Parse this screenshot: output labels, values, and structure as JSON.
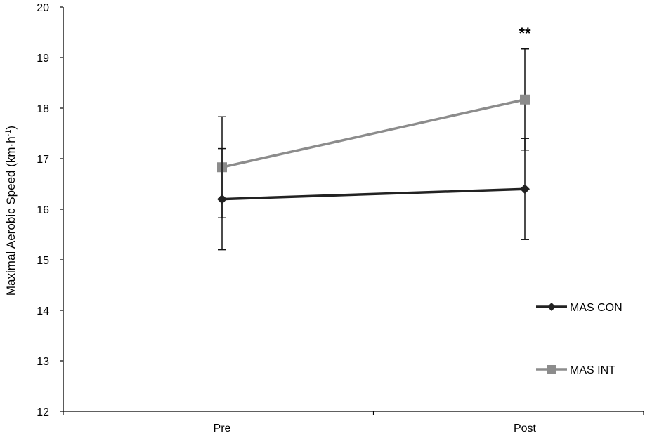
{
  "chart_data": {
    "type": "line",
    "categories": [
      "Pre",
      "Post"
    ],
    "ylabel": "Maximal Aerobic Speed (km·h",
    "ylabel_sup": "-1",
    "ylabel_close": ")",
    "ylim": [
      12,
      20
    ],
    "yticks": [
      12,
      13,
      14,
      15,
      16,
      17,
      18,
      19,
      20
    ],
    "grid": false,
    "legend_position": "right",
    "series": [
      {
        "name": "MAS CON",
        "values": [
          16.2,
          16.4
        ],
        "error": [
          1.0,
          1.0
        ],
        "color": "#222222",
        "marker": "diamond"
      },
      {
        "name": "MAS INT",
        "values": [
          16.83,
          18.17
        ],
        "error": [
          1.0,
          1.0
        ],
        "color": "#8c8c8c",
        "marker": "square"
      }
    ],
    "annotations": [
      {
        "text": "**",
        "category": "Post",
        "y": 19.5
      }
    ]
  }
}
